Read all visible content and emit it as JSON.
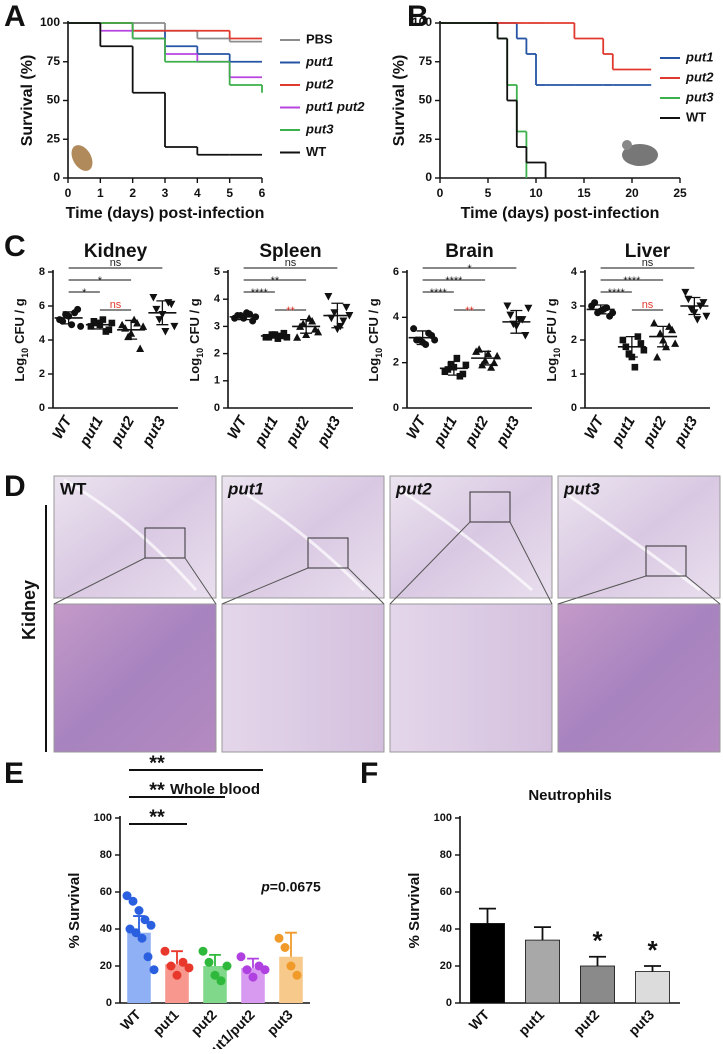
{
  "panel_labels": [
    "A",
    "B",
    "C",
    "D",
    "E",
    "F"
  ],
  "histology": {
    "organ": "Kidney",
    "columns": [
      "WT",
      "put1",
      "put2",
      "put3"
    ]
  },
  "chart_data": [
    {
      "type": "line",
      "drawstyle": "steps-post",
      "xlabel": "Time (days) post-infection",
      "ylabel": "Survival (%)",
      "x": [
        0,
        1,
        2,
        3,
        4,
        5,
        6
      ],
      "xlim": [
        0,
        6
      ],
      "xticks": [
        0,
        1,
        2,
        3,
        4,
        5,
        6
      ],
      "ylim": [
        0,
        100
      ],
      "yticks": [
        0,
        25,
        50,
        75,
        100
      ],
      "legend": "right",
      "series": [
        {
          "name": "PBS",
          "color": "#8c8c8c",
          "values": [
            100,
            100,
            100,
            95,
            90,
            88,
            88
          ]
        },
        {
          "name": "put1",
          "color": "#2554a5",
          "values": [
            100,
            100,
            95,
            85,
            80,
            75,
            75
          ]
        },
        {
          "name": "put2",
          "color": "#e03a2f",
          "values": [
            100,
            100,
            95,
            95,
            95,
            90,
            90
          ]
        },
        {
          "name": "put1 put2",
          "color": "#b844e0",
          "values": [
            100,
            95,
            90,
            80,
            75,
            65,
            65
          ]
        },
        {
          "name": "put3",
          "color": "#3cb04a",
          "values": [
            100,
            100,
            90,
            75,
            75,
            60,
            55
          ]
        },
        {
          "name": "WT",
          "color": "#111111",
          "values": [
            100,
            85,
            55,
            20,
            15,
            15,
            15
          ]
        }
      ]
    },
    {
      "type": "line",
      "drawstyle": "steps-post",
      "xlabel": "Time (days) post-infection",
      "ylabel": "Survival (%)",
      "x": [
        0,
        5,
        6,
        7,
        8,
        9,
        10,
        11,
        14,
        17,
        18,
        20,
        22
      ],
      "xlim": [
        0,
        25
      ],
      "xticks": [
        0,
        5,
        10,
        15,
        20,
        25
      ],
      "ylim": [
        0,
        100
      ],
      "yticks": [
        0,
        25,
        50,
        75,
        100
      ],
      "legend": "right",
      "series": [
        {
          "name": "put1",
          "color": "#2554a5",
          "values": [
            100,
            100,
            100,
            100,
            90,
            80,
            60,
            60,
            60,
            60,
            60,
            60,
            60
          ]
        },
        {
          "name": "put2",
          "color": "#e03a2f",
          "values": [
            100,
            100,
            100,
            100,
            100,
            100,
            100,
            100,
            90,
            80,
            70,
            70,
            70
          ]
        },
        {
          "name": "put3",
          "color": "#3cb04a",
          "values": [
            100,
            100,
            90,
            60,
            30,
            0,
            null,
            null,
            null,
            null,
            null,
            null,
            null
          ]
        },
        {
          "name": "WT",
          "color": "#111111",
          "values": [
            100,
            100,
            90,
            50,
            20,
            10,
            10,
            0,
            null,
            null,
            null,
            null,
            null
          ]
        }
      ]
    },
    {
      "type": "dot",
      "title": "Kidney",
      "ylabel_parts": [
        "Log",
        "10",
        "CFU / g"
      ],
      "categories": [
        "WT",
        "put1",
        "put2",
        "put3"
      ],
      "category_style": "italic",
      "markers": [
        "circle",
        "square",
        "triangle",
        "triangle-down"
      ],
      "ylim": [
        0,
        8
      ],
      "yticks": [
        0,
        2,
        4,
        6,
        8
      ],
      "groups": [
        {
          "values": [
            5.2,
            5.5,
            4.9,
            5.8,
            5.1,
            5.4,
            5.6,
            4.8
          ],
          "mean": 5.3,
          "sd": 0.35
        },
        {
          "values": [
            4.8,
            5.0,
            5.2,
            4.6,
            5.1,
            4.9,
            4.5,
            5.0
          ],
          "mean": 4.9,
          "sd": 0.25
        },
        {
          "values": [
            4.9,
            4.2,
            5.2,
            3.5,
            4.7,
            4.4,
            5.0,
            4.8
          ],
          "mean": 4.6,
          "sd": 0.55
        },
        {
          "values": [
            6.5,
            5.2,
            4.5,
            6.1,
            5.8,
            5.5,
            6.2,
            4.8
          ],
          "mean": 5.6,
          "sd": 0.7
        }
      ],
      "annotations": [
        {
          "text": "ns",
          "between": [
            "WT",
            "put3"
          ],
          "color": "#222222"
        },
        {
          "text": "*",
          "between": [
            "WT",
            "put2"
          ],
          "color": "#222222"
        },
        {
          "text": "*",
          "between": [
            "WT",
            "put1"
          ],
          "color": "#222222"
        },
        {
          "text": "ns",
          "between": [
            "put1",
            "put2"
          ],
          "color": "#e03a2f"
        }
      ]
    },
    {
      "type": "dot",
      "title": "Spleen",
      "ylabel_parts": [
        "Log",
        "10",
        "CFU / g"
      ],
      "categories": [
        "WT",
        "put1",
        "put2",
        "put3"
      ],
      "category_style": "italic",
      "markers": [
        "circle",
        "square",
        "triangle",
        "triangle-down"
      ],
      "ylim": [
        0,
        5
      ],
      "yticks": [
        0,
        1,
        2,
        3,
        4,
        5
      ],
      "groups": [
        {
          "values": [
            3.3,
            3.4,
            3.5,
            3.2,
            3.4,
            3.3,
            3.45,
            3.35
          ],
          "mean": 3.35,
          "sd": 0.1
        },
        {
          "values": [
            2.6,
            2.7,
            2.55,
            2.75,
            2.6,
            2.7,
            2.65,
            2.6
          ],
          "mean": 2.65,
          "sd": 0.08
        },
        {
          "values": [
            2.6,
            3.1,
            3.3,
            2.9,
            3.0,
            2.7,
            3.2,
            2.8
          ],
          "mean": 3.0,
          "sd": 0.25
        },
        {
          "values": [
            4.1,
            3.5,
            3.0,
            3.7,
            3.3,
            2.9,
            3.2,
            3.4
          ],
          "mean": 3.4,
          "sd": 0.45
        }
      ],
      "annotations": [
        {
          "text": "ns",
          "between": [
            "WT",
            "put3"
          ],
          "color": "#222222"
        },
        {
          "text": "**",
          "between": [
            "WT",
            "put2"
          ],
          "color": "#222222"
        },
        {
          "text": "****",
          "between": [
            "WT",
            "put1"
          ],
          "color": "#222222"
        },
        {
          "text": "**",
          "between": [
            "put1",
            "put2"
          ],
          "color": "#e03a2f"
        }
      ]
    },
    {
      "type": "dot",
      "title": "Brain",
      "ylabel_parts": [
        "Log",
        "10",
        "CFU / g"
      ],
      "categories": [
        "WT",
        "put1",
        "put2",
        "put3"
      ],
      "category_style": "italic",
      "markers": [
        "circle",
        "square",
        "triangle",
        "triangle-down"
      ],
      "ylim": [
        0,
        6
      ],
      "yticks": [
        0,
        2,
        4,
        6
      ],
      "groups": [
        {
          "values": [
            3.5,
            3.0,
            2.8,
            3.2,
            3.0,
            2.9,
            3.3,
            3.0
          ],
          "mean": 3.1,
          "sd": 0.3
        },
        {
          "values": [
            1.6,
            1.9,
            2.2,
            1.5,
            1.7,
            1.8,
            1.4,
            1.9
          ],
          "mean": 1.75,
          "sd": 0.3
        },
        {
          "values": [
            2.5,
            1.9,
            2.4,
            2.0,
            2.6,
            2.1,
            1.8,
            2.3
          ],
          "mean": 2.2,
          "sd": 0.3
        },
        {
          "values": [
            4.5,
            3.7,
            3.9,
            3.2,
            4.1,
            3.6,
            3.9,
            4.4
          ],
          "mean": 3.8,
          "sd": 0.5
        }
      ],
      "annotations": [
        {
          "text": "*",
          "between": [
            "WT",
            "put3"
          ],
          "color": "#222222"
        },
        {
          "text": "****",
          "between": [
            "WT",
            "put2"
          ],
          "color": "#222222"
        },
        {
          "text": "****",
          "between": [
            "WT",
            "put1"
          ],
          "color": "#222222"
        },
        {
          "text": "**",
          "between": [
            "put1",
            "put2"
          ],
          "color": "#e03a2f"
        }
      ]
    },
    {
      "type": "dot",
      "title": "Liver",
      "ylabel_parts": [
        "Log",
        "10",
        "CFU / g"
      ],
      "categories": [
        "WT",
        "put1",
        "put2",
        "put3"
      ],
      "category_style": "italic",
      "markers": [
        "circle",
        "square",
        "triangle",
        "triangle-down"
      ],
      "ylim": [
        0,
        4
      ],
      "yticks": [
        0,
        1,
        2,
        3,
        4
      ],
      "groups": [
        {
          "values": [
            3.0,
            2.8,
            2.9,
            2.7,
            3.1,
            2.85,
            2.95,
            2.8
          ],
          "mean": 2.9,
          "sd": 0.13
        },
        {
          "values": [
            2.0,
            1.6,
            1.2,
            1.9,
            1.8,
            1.5,
            2.1,
            1.7
          ],
          "mean": 1.8,
          "sd": 0.3
        },
        {
          "values": [
            2.5,
            2.2,
            1.8,
            2.3,
            1.5,
            2.0,
            2.4,
            1.9
          ],
          "mean": 2.1,
          "sd": 0.3
        },
        {
          "values": [
            3.4,
            2.9,
            2.6,
            3.1,
            3.2,
            2.8,
            3.0,
            2.7
          ],
          "mean": 3.0,
          "sd": 0.25
        }
      ],
      "annotations": [
        {
          "text": "ns",
          "between": [
            "WT",
            "put3"
          ],
          "color": "#222222"
        },
        {
          "text": "****",
          "between": [
            "WT",
            "put2"
          ],
          "color": "#222222"
        },
        {
          "text": "****",
          "between": [
            "WT",
            "put1"
          ],
          "color": "#222222"
        },
        {
          "text": "ns",
          "between": [
            "put1",
            "put2"
          ],
          "color": "#e03a2f"
        }
      ]
    },
    {
      "type": "bar",
      "title": "Whole blood",
      "ylabel": "% Survival",
      "categories": [
        "WT",
        "put1",
        "put2",
        "put1/put2",
        "put3"
      ],
      "values": [
        38,
        21,
        20,
        19,
        25
      ],
      "errors": [
        9,
        7,
        6,
        5,
        13
      ],
      "colors": [
        "#8fb0f5",
        "#f7978e",
        "#80d88a",
        "#d79af0",
        "#f7c98a"
      ],
      "point_colors": [
        "#2a5fe0",
        "#e8372b",
        "#2eb83c",
        "#b040e0",
        "#f09a2a"
      ],
      "points": [
        [
          58,
          55,
          50,
          45,
          42,
          40,
          38,
          35,
          25,
          18
        ],
        [
          28,
          20,
          15,
          22,
          19
        ],
        [
          28,
          22,
          15,
          12,
          20
        ],
        [
          25,
          18,
          14,
          20,
          18
        ],
        [
          35,
          30,
          20,
          15
        ]
      ],
      "ylim": [
        0,
        100
      ],
      "yticks": [
        0,
        20,
        40,
        60,
        80,
        100
      ],
      "annotations": [
        {
          "text": "**",
          "between": [
            "WT",
            "put1/put2"
          ]
        },
        {
          "text": "**",
          "between": [
            "WT",
            "put2"
          ]
        },
        {
          "text": "**",
          "between": [
            "WT",
            "put1"
          ]
        }
      ],
      "note": {
        "parts": [
          "p",
          "=0.0675"
        ],
        "at": "put3"
      }
    },
    {
      "type": "bar",
      "title": "Neutrophils",
      "ylabel": "% Survival",
      "categories": [
        "WT",
        "put1",
        "put2",
        "put3"
      ],
      "values": [
        43,
        34,
        20,
        17
      ],
      "errors": [
        8,
        7,
        5,
        3
      ],
      "colors": [
        "#000000",
        "#a8a8a8",
        "#8a8a8a",
        "#dcdcdc"
      ],
      "ylim": [
        0,
        100
      ],
      "yticks": [
        0,
        20,
        40,
        60,
        80,
        100
      ],
      "stars": [
        {
          "text": "*",
          "at": "put2"
        },
        {
          "text": "*",
          "at": "put3"
        }
      ]
    }
  ]
}
